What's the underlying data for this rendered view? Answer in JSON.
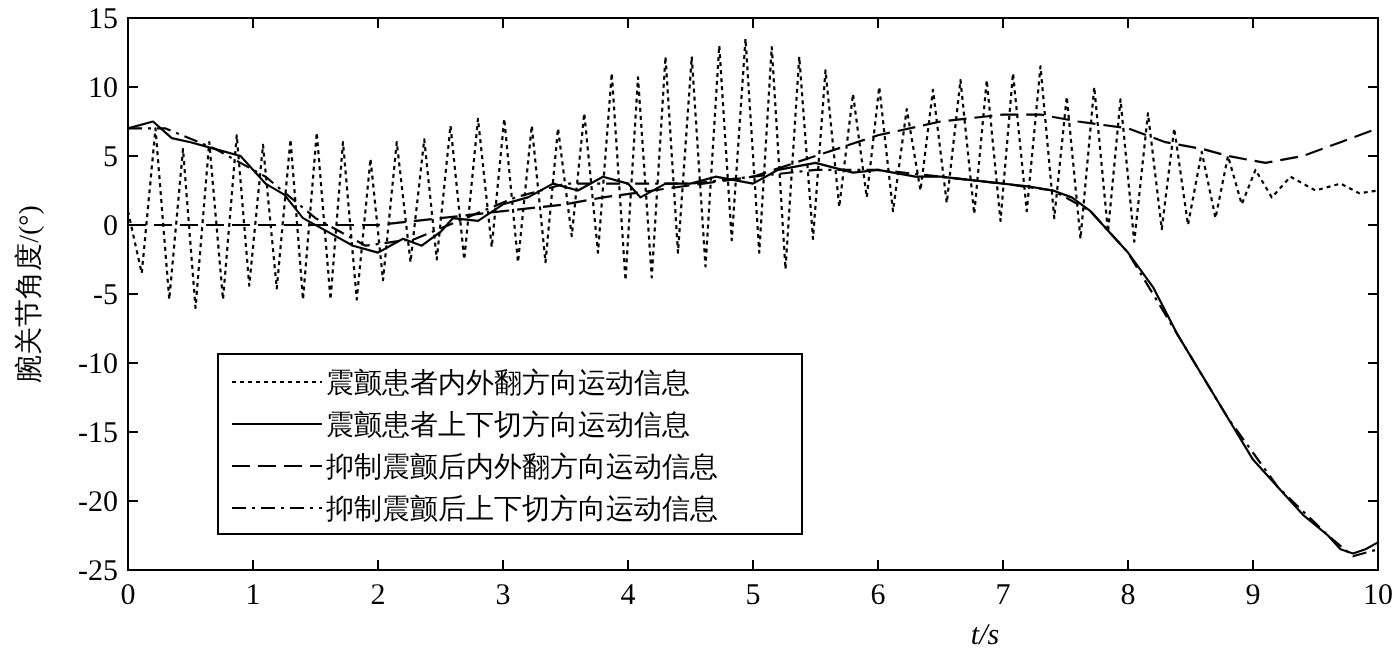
{
  "chart_data": {
    "type": "line",
    "xlabel": "t/s",
    "ylabel": "腕关节角度/(°)",
    "xlim": [
      0,
      10
    ],
    "ylim": [
      -25,
      15
    ],
    "xticks": [
      0,
      1,
      2,
      3,
      4,
      5,
      6,
      7,
      8,
      9,
      10
    ],
    "yticks": [
      -25,
      -20,
      -15,
      -10,
      -5,
      0,
      5,
      10,
      15
    ],
    "grid": false,
    "legend": "bottom left",
    "marker": "none",
    "series": [
      {
        "name": "震颤患者内外翻方向运动信息",
        "color": "#000000",
        "line_style": "dotted",
        "x": [
          0,
          0.11,
          0.22,
          0.33,
          0.44,
          0.54,
          0.65,
          0.76,
          0.87,
          0.97,
          1.08,
          1.19,
          1.3,
          1.4,
          1.51,
          1.62,
          1.72,
          1.83,
          1.94,
          2.04,
          2.15,
          2.26,
          2.37,
          2.47,
          2.58,
          2.69,
          2.8,
          2.91,
          3.01,
          3.12,
          3.23,
          3.34,
          3.44,
          3.55,
          3.65,
          3.76,
          3.87,
          3.98,
          4.08,
          4.19,
          4.3,
          4.4,
          4.51,
          4.62,
          4.73,
          4.83,
          4.94,
          5.05,
          5.15,
          5.26,
          5.37,
          5.48,
          5.58,
          5.69,
          5.8,
          5.91,
          6.01,
          6.12,
          6.23,
          6.34,
          6.44,
          6.55,
          6.66,
          6.77,
          6.87,
          6.98,
          7.08,
          7.19,
          7.3,
          7.41,
          7.51,
          7.62,
          7.73,
          7.84,
          7.94,
          8.05,
          8.16,
          8.27,
          8.37,
          8.48,
          8.59,
          8.7,
          8.8,
          8.91,
          9.02,
          9.15,
          9.3,
          9.5,
          9.7,
          9.85,
          10
        ],
        "values": [
          1,
          -3.5,
          7,
          -5.4,
          5.5,
          -6,
          6,
          -5.4,
          6.5,
          -4.4,
          5.8,
          -4.6,
          6.2,
          -5.4,
          6.7,
          -5.4,
          6,
          -5.4,
          4.8,
          -4,
          6,
          -2.7,
          6.2,
          -2.5,
          7.2,
          -2.5,
          7.7,
          -1.6,
          7.7,
          -2.7,
          7.2,
          -2.7,
          7,
          -0.8,
          8.1,
          -2,
          11,
          -4,
          10.7,
          -3.8,
          12.2,
          -2,
          12.2,
          -3,
          13,
          -1.1,
          13.5,
          -2,
          12.9,
          -3.2,
          12.2,
          -1,
          11.2,
          1.3,
          9.5,
          2,
          10,
          1,
          8.4,
          2.5,
          9.8,
          1.6,
          10.5,
          0.8,
          10.5,
          0.3,
          11,
          1,
          11.5,
          0.5,
          9.3,
          -1,
          10,
          -0.5,
          9.1,
          -1.2,
          8.1,
          -0.3,
          7,
          0,
          5.3,
          0.5,
          5,
          1.5,
          4,
          2,
          3.5,
          2.5,
          3,
          2.3,
          2.5
        ]
      },
      {
        "name": "震颤患者上下切方向运动信息",
        "color": "#000000",
        "line_style": "solid",
        "x": [
          0,
          0.2,
          0.35,
          0.5,
          0.7,
          0.9,
          1.1,
          1.25,
          1.4,
          1.6,
          1.8,
          2.0,
          2.2,
          2.35,
          2.5,
          2.6,
          2.8,
          3.0,
          3.2,
          3.4,
          3.6,
          3.8,
          4.0,
          4.1,
          4.3,
          4.5,
          4.7,
          5.0,
          5.2,
          5.5,
          5.8,
          6.0,
          6.3,
          6.5,
          6.8,
          7.0,
          7.2,
          7.4,
          7.55,
          7.7,
          7.85,
          8.0,
          8.2,
          8.4,
          8.6,
          8.8,
          9.0,
          9.2,
          9.4,
          9.6,
          9.7,
          9.8,
          9.9,
          10
        ],
        "values": [
          7,
          7.5,
          6.3,
          6,
          5.5,
          5,
          3,
          2.2,
          0.5,
          -0.5,
          -1.5,
          -2,
          -1,
          -1.5,
          -0.5,
          0.5,
          0.3,
          1.5,
          2,
          3,
          2.5,
          3.5,
          3,
          2,
          3,
          3,
          3.5,
          3,
          4,
          4.5,
          3.8,
          4,
          3.5,
          3.5,
          3.2,
          3,
          2.8,
          2.5,
          2,
          1,
          -0.5,
          -2,
          -4.5,
          -8,
          -11,
          -14,
          -17,
          -19,
          -21,
          -22.5,
          -23.5,
          -23.8,
          -23.5,
          -23
        ]
      },
      {
        "name": "抑制震颤后内外翻方向运动信息",
        "color": "#000000",
        "line_style": "dashed",
        "x": [
          0,
          0.5,
          1.0,
          1.6,
          2.0,
          2.5,
          3.0,
          3.5,
          3.8,
          4.2,
          4.6,
          5.0,
          5.5,
          6.0,
          6.5,
          7.0,
          7.3,
          7.6,
          8.0,
          8.3,
          8.6,
          8.8,
          9.1,
          9.4,
          9.7,
          10
        ],
        "values": [
          0,
          0,
          0,
          0,
          0,
          0.5,
          1,
          1.5,
          2,
          2.5,
          3,
          3.5,
          5,
          6.5,
          7.5,
          8,
          8,
          7.5,
          7,
          6,
          5.5,
          5,
          4.5,
          5,
          6,
          7
        ]
      },
      {
        "name": "抑制震颤后上下切方向运动信息",
        "color": "#000000",
        "line_style": "dashdot",
        "x": [
          0,
          0.3,
          0.7,
          1.1,
          1.5,
          1.9,
          2.3,
          2.7,
          3.1,
          3.5,
          4.0,
          4.5,
          5.0,
          5.5,
          6.0,
          6.5,
          7.0,
          7.4,
          7.7,
          8.0,
          8.4,
          8.8,
          9.2,
          9.6,
          9.8,
          10
        ],
        "values": [
          7,
          7,
          5.5,
          3.5,
          0.5,
          -1.5,
          -1,
          0.5,
          2,
          3,
          3,
          3,
          3.5,
          4,
          4,
          3.5,
          3,
          2.5,
          1,
          -2,
          -8,
          -14,
          -19,
          -22.5,
          -24,
          -23.5
        ]
      }
    ]
  }
}
